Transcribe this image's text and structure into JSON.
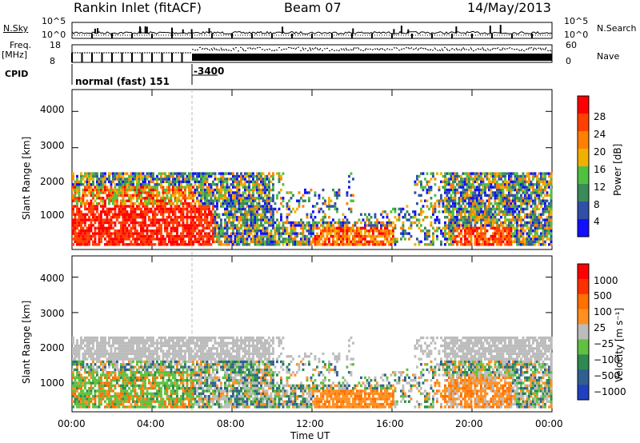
{
  "header": {
    "station": "Rankin Inlet (fitACF)",
    "beam": "Beam 07",
    "date": "14/May/2013"
  },
  "top_panels": {
    "nsky_label": "N.Sky",
    "nsearch_label": "N.Search",
    "nsky_ticks": [
      "10^5",
      "10^0"
    ],
    "nsearch_ticks": [
      "10^5",
      "10^0"
    ],
    "freq_label_1": "Freq.",
    "freq_label_2": "[MHz]",
    "freq_ticks": [
      "18",
      "8"
    ],
    "nave_label": "Nave",
    "nave_ticks": [
      "60",
      "0"
    ],
    "cpid_label": "CPID",
    "cpid_segments": [
      {
        "label": "normal (fast) 151",
        "start_hour": 0,
        "end_hour": 6
      },
      {
        "label": "-3400",
        "start_hour": 6,
        "end_hour": 24
      }
    ]
  },
  "chart_data": [
    {
      "type": "heatmap",
      "name": "power-panel",
      "ylabel": "Slant Range [km]",
      "y_ticks": [
        "1000",
        "2000",
        "3000",
        "4000"
      ],
      "ylim": [
        200,
        4600
      ],
      "xlim": [
        0,
        24
      ],
      "colorbar": {
        "label": "Power [dB]",
        "ticks": [
          "4",
          "8",
          "12",
          "16",
          "20",
          "24",
          "28"
        ],
        "colors": [
          "#1010ff",
          "#3050a8",
          "#3a8a5a",
          "#50c040",
          "#f0b000",
          "#ff8000",
          "#ff4000",
          "#ff0000"
        ]
      }
    },
    {
      "type": "heatmap",
      "name": "velocity-panel",
      "ylabel": "Slant Range [km]",
      "y_ticks": [
        "1000",
        "2000",
        "3000",
        "4000"
      ],
      "ylim": [
        200,
        4600
      ],
      "xlim": [
        0,
        24
      ],
      "colorbar": {
        "label": "Velocity [m s⁻¹]",
        "ticks": [
          "1000",
          "500",
          "100",
          "25",
          "−25",
          "−100",
          "−500",
          "−1000"
        ],
        "colors": [
          "#2040c0",
          "#306090",
          "#2e8a50",
          "#60c040",
          "#bcbcbc",
          "#ff9020",
          "#ff7000",
          "#ff3000",
          "#ff0000"
        ]
      }
    }
  ],
  "x_axis": {
    "ticks": [
      "00:00",
      "04:00",
      "08:00",
      "12:00",
      "16:00",
      "20:00",
      "00:00"
    ],
    "tick_hours": [
      0,
      4,
      8,
      12,
      16,
      20,
      24
    ],
    "xlabel": "Time UT"
  }
}
